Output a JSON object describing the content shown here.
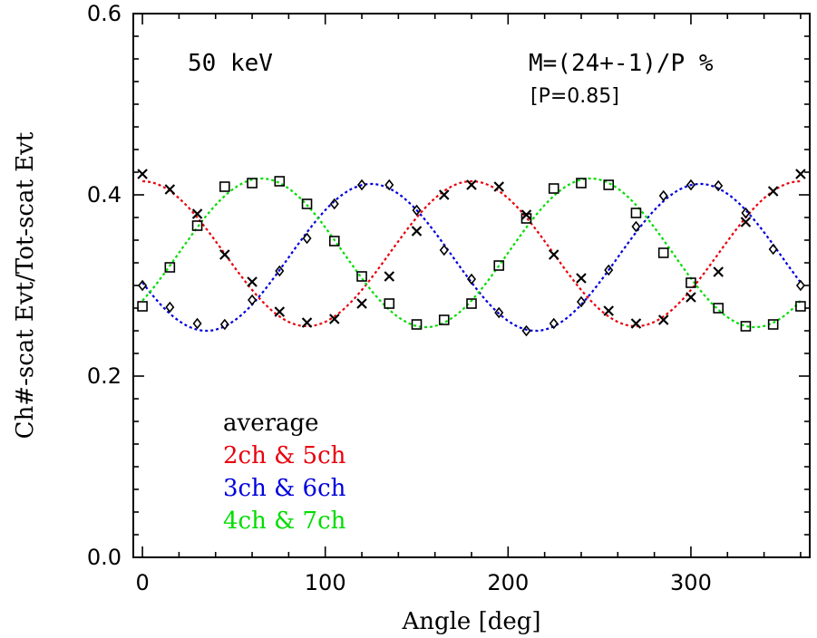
{
  "chart_data": {
    "type": "scatter",
    "xlabel": "Angle [deg]",
    "ylabel": "Ch#-scat Evt/Tot-scat Evt",
    "xlim": [
      -5,
      365
    ],
    "ylim": [
      0.0,
      0.6
    ],
    "x_ticks": [
      0,
      100,
      200,
      300
    ],
    "y_ticks": [
      0.0,
      0.2,
      0.4,
      0.6
    ],
    "x_tick_labels": [
      "0",
      "100",
      "200",
      "300"
    ],
    "y_tick_labels": [
      "0.0",
      "0.2",
      "0.4",
      "0.6"
    ],
    "annotations": {
      "energy": "50 keV",
      "modulation": "M=(24+-1)/P %",
      "polarization": "[P=0.85]"
    },
    "legend": {
      "placement": "bottom-left",
      "entries": [
        {
          "label": "average",
          "color": "#000000"
        },
        {
          "label": "2ch & 5ch",
          "color": "#e8000b"
        },
        {
          "label": "3ch & 6ch",
          "color": "#0000dd"
        },
        {
          "label": "4ch & 7ch",
          "color": "#00dd00"
        }
      ]
    },
    "x": [
      0,
      15,
      30,
      45,
      60,
      75,
      90,
      105,
      120,
      135,
      150,
      165,
      180,
      195,
      210,
      225,
      240,
      255,
      270,
      285,
      300,
      315,
      330,
      345,
      360
    ],
    "series": [
      {
        "name": "2ch & 5ch",
        "marker": "cross",
        "color": "#e8000b",
        "fit": {
          "mean": 0.335,
          "amplitude": 0.08,
          "phase_deg": 0
        },
        "values": [
          0.423,
          0.406,
          0.379,
          0.334,
          0.304,
          0.271,
          0.259,
          0.263,
          0.28,
          0.31,
          0.36,
          0.4,
          0.411,
          0.409,
          0.378,
          0.334,
          0.308,
          0.272,
          0.258,
          0.262,
          0.287,
          0.315,
          0.37,
          0.404,
          0.423
        ]
      },
      {
        "name": "3ch & 6ch",
        "marker": "diamond",
        "color": "#0000dd",
        "fit": {
          "mean": 0.331,
          "amplitude": 0.081,
          "phase_deg": 125
        },
        "values": [
          0.3,
          0.276,
          0.258,
          0.257,
          0.284,
          0.316,
          0.352,
          0.39,
          0.411,
          0.411,
          0.383,
          0.339,
          0.307,
          0.27,
          0.25,
          0.258,
          0.282,
          0.317,
          0.365,
          0.399,
          0.411,
          0.41,
          0.38,
          0.34,
          0.3
        ]
      },
      {
        "name": "4ch & 7ch",
        "marker": "square",
        "color": "#00dd00",
        "fit": {
          "mean": 0.336,
          "amplitude": 0.082,
          "phase_deg": 65
        },
        "values": [
          0.277,
          0.32,
          0.366,
          0.409,
          0.413,
          0.415,
          0.39,
          0.349,
          0.31,
          0.28,
          0.257,
          0.262,
          0.28,
          0.322,
          0.374,
          0.407,
          0.413,
          0.411,
          0.38,
          0.336,
          0.303,
          0.275,
          0.255,
          0.257,
          0.277
        ]
      }
    ]
  }
}
